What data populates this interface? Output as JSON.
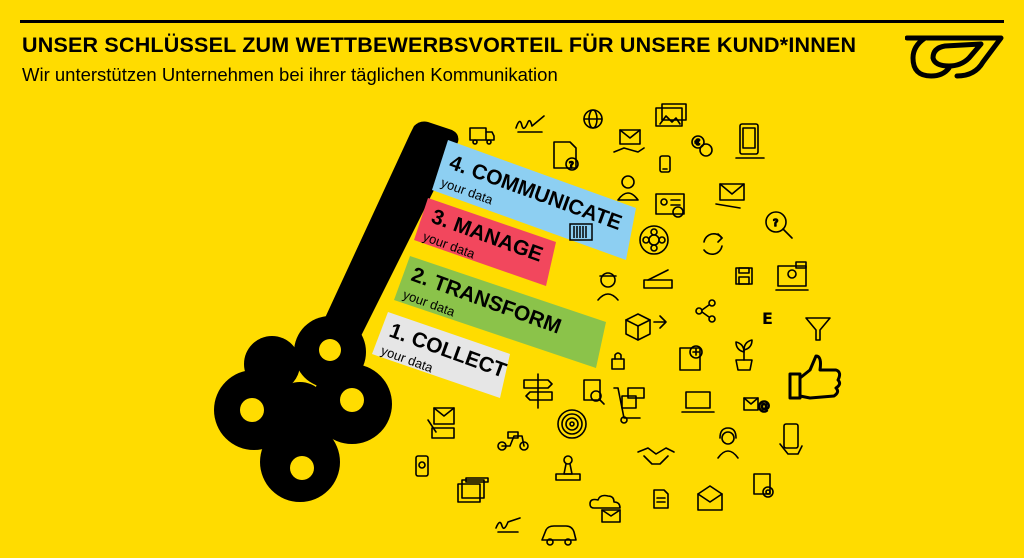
{
  "header": {
    "title": "UNSER SCHLÜSSEL ZUM WETTBEWERBSVORTEIL FÜR UNSERE KUND*INNEN",
    "subtitle": "Wir unterstützen Unternehmen bei ihrer täglichen Kommunikation"
  },
  "steps": [
    {
      "label": "4. COMMUNICATE",
      "sub": "your data",
      "color": "#8DCFF2"
    },
    {
      "label": "3. MANAGE",
      "sub": "your data",
      "color": "#F2475D"
    },
    {
      "label": "2. TRANSFORM",
      "sub": "your data",
      "color": "#8BC34A"
    },
    {
      "label": "1. COLLECT",
      "sub": "your data",
      "color": "#E6E6E6"
    }
  ],
  "colors": {
    "background": "#FFDC00",
    "key": "#000000"
  },
  "icons": [
    "mail-truck-icon",
    "signature-icon",
    "globe-icon",
    "photos-icon",
    "document-question-icon",
    "envelopes-hand-icon",
    "phone-icon",
    "euro-coins-icon",
    "tablet-icon",
    "user-icon",
    "id-card-icon",
    "envelope-icon",
    "magnifier-icon",
    "barcode-icon",
    "settings-flower-icon",
    "refresh-icon",
    "scanner-icon",
    "courier-icon",
    "save-icon",
    "video-call-icon",
    "share-icon",
    "package-icon",
    "letter-e-icon",
    "filter-icon",
    "lock-icon",
    "add-document-icon",
    "plant-icon",
    "thumbs-up-icon",
    "signpost-icon",
    "document-search-icon",
    "hand-truck-icon",
    "laptop-icon",
    "email-at-icon",
    "target-icon",
    "handshake-icon",
    "headset-icon",
    "mobile-hand-icon",
    "scooter-icon",
    "stamp-icon",
    "files-icon",
    "mobile-bell-icon",
    "pdf-icon",
    "cloud-mail-icon",
    "folder-icon",
    "open-letter-icon",
    "settings-document-icon",
    "car-icon",
    "signature-icon",
    "letter-writing-icon"
  ]
}
